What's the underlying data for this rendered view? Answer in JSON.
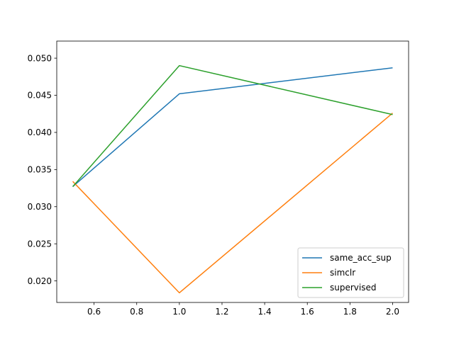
{
  "chart_data": {
    "type": "line",
    "title": "",
    "xlabel": "",
    "ylabel": "",
    "xlim": [
      0.425,
      2.075
    ],
    "ylim": [
      0.0171,
      0.0523
    ],
    "x_ticks": [
      0.6,
      0.8,
      1.0,
      1.2,
      1.4,
      1.6,
      1.8,
      2.0
    ],
    "x_tick_labels": [
      "0.6",
      "0.8",
      "1.0",
      "1.2",
      "1.4",
      "1.6",
      "1.8",
      "2.0"
    ],
    "y_ticks": [
      0.02,
      0.025,
      0.03,
      0.035,
      0.04,
      0.045,
      0.05
    ],
    "y_tick_labels": [
      "0.020",
      "0.025",
      "0.030",
      "0.035",
      "0.040",
      "0.045",
      "0.050"
    ],
    "grid": false,
    "legend_position": "lower right",
    "series": [
      {
        "name": "same_acc_sup",
        "color": "#1f77b4",
        "x": [
          0.5,
          1.0,
          2.0
        ],
        "y": [
          0.0327,
          0.0452,
          0.0487
        ]
      },
      {
        "name": "simclr",
        "color": "#ff7f0e",
        "x": [
          0.5,
          1.0,
          2.0
        ],
        "y": [
          0.0334,
          0.0184,
          0.0426
        ]
      },
      {
        "name": "supervised",
        "color": "#2ca02c",
        "x": [
          0.5,
          1.0,
          2.0
        ],
        "y": [
          0.0327,
          0.049,
          0.0424
        ]
      }
    ]
  }
}
